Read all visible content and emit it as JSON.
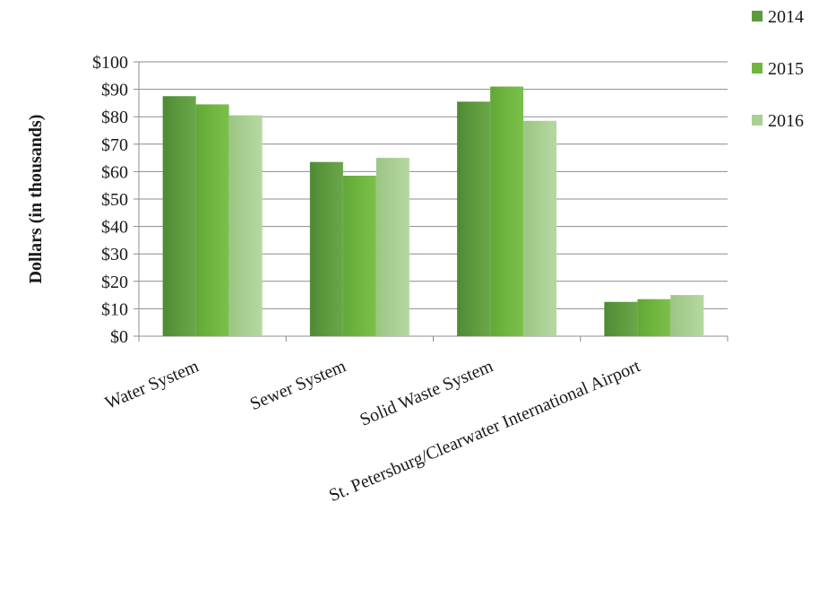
{
  "chart_data": {
    "type": "bar",
    "title": "",
    "xlabel": "",
    "ylabel": "Dollars (in thousands)",
    "ylim": [
      0,
      100
    ],
    "ytick_values": [
      0,
      10,
      20,
      30,
      40,
      50,
      60,
      70,
      80,
      90,
      100
    ],
    "ytick_labels": [
      "$0",
      "$10",
      "$20",
      "$30",
      "$40",
      "$50",
      "$60",
      "$70",
      "$80",
      "$90",
      "$100"
    ],
    "categories": [
      "Water System",
      "Sewer System",
      "Solid Waste System",
      "St. Petersburg/Clearwater International Airport"
    ],
    "series": [
      {
        "name": "2014",
        "values": [
          87.5,
          63.5,
          85.5,
          12.5
        ],
        "color": "#5d9a3e"
      },
      {
        "name": "2015",
        "values": [
          84.5,
          58.5,
          91,
          13.5
        ],
        "color": "#6fb53f"
      },
      {
        "name": "2016",
        "values": [
          80.5,
          65,
          78.5,
          15
        ],
        "color": "#a9cf92"
      }
    ],
    "grid": true,
    "legend_position": "top-right"
  }
}
